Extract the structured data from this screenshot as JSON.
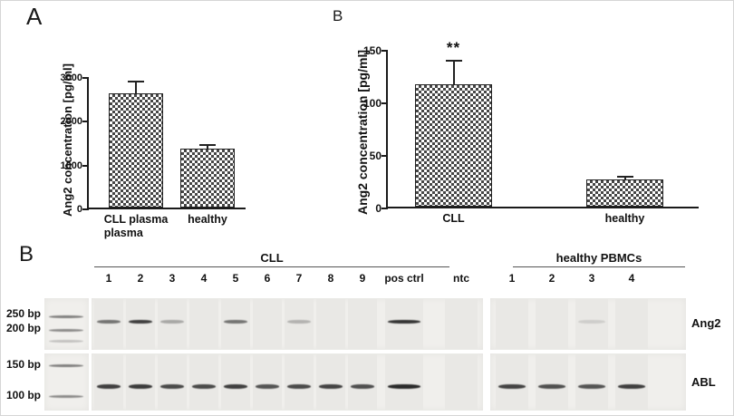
{
  "panels": {
    "a_label": "A",
    "b_chart_label": "B",
    "gel_label": "B"
  },
  "chart_data": [
    {
      "type": "bar",
      "panel": "A",
      "title": "",
      "ylabel": "Ang2 concentration [pg/ml]",
      "xlabel": "",
      "categories": [
        "CLL plasma\nplasma",
        "healthy"
      ],
      "values": [
        2600,
        1350
      ],
      "errors_plus": [
        300,
        100
      ],
      "ylim": [
        0,
        3000
      ],
      "yticks": [
        0,
        1000,
        2000,
        3000
      ],
      "annotations": [
        "",
        ""
      ],
      "bar_pattern": "checkerboard",
      "grid": false,
      "legend": "none"
    },
    {
      "type": "bar",
      "panel": "B",
      "title": "",
      "ylabel": "Ang2 concentration [pg/ml]",
      "xlabel": "",
      "categories": [
        "CLL",
        "healthy"
      ],
      "values": [
        116,
        26
      ],
      "errors_plus": [
        24,
        3
      ],
      "ylim": [
        0,
        150
      ],
      "yticks": [
        0,
        50,
        100,
        150
      ],
      "annotations": [
        "**",
        ""
      ],
      "bar_pattern": "checkerboard",
      "grid": false,
      "legend": "none"
    }
  ],
  "gel": {
    "groups": [
      {
        "label": "CLL"
      },
      {
        "label": "healthy PBMCs"
      }
    ],
    "cll_lanes": [
      "1",
      "2",
      "3",
      "4",
      "5",
      "6",
      "7",
      "8",
      "9"
    ],
    "control_lanes": [
      "pos ctrl",
      "ntc"
    ],
    "healthy_lanes": [
      "1",
      "2",
      "3",
      "4"
    ],
    "rows": [
      {
        "target": "Ang2",
        "markers": [
          "250 bp",
          "200 bp"
        ],
        "band_intensity": {
          "cll": [
            0.55,
            0.8,
            0.3,
            0,
            0.55,
            0,
            0.25,
            0,
            0
          ],
          "pos_ctrl": 0.85,
          "ntc": 0,
          "healthy": [
            0,
            0,
            0.12,
            0
          ]
        }
      },
      {
        "target": "ABL",
        "markers": [
          "150 bp",
          "100 bp"
        ],
        "band_intensity": {
          "cll": [
            0.8,
            0.82,
            0.75,
            0.75,
            0.8,
            0.7,
            0.75,
            0.78,
            0.72
          ],
          "pos_ctrl": 0.9,
          "ntc": 0,
          "healthy": [
            0.78,
            0.72,
            0.7,
            0.8
          ]
        }
      }
    ]
  }
}
